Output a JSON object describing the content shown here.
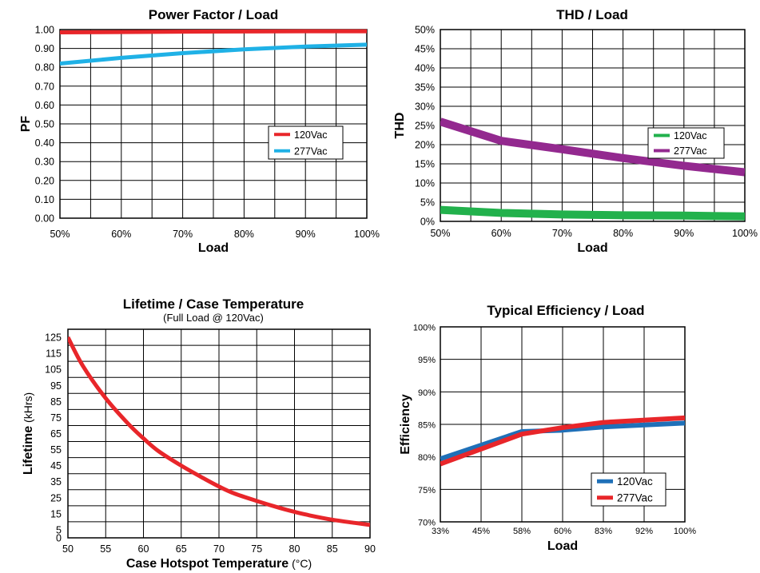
{
  "colors": {
    "red": "#e8262a",
    "cyan": "#1fb1e6",
    "green": "#22b14c",
    "purple": "#93298f",
    "blue": "#1f70b8",
    "grid": "#000000"
  },
  "chart_data": [
    {
      "type": "line",
      "title": "Power Factor / Load",
      "xlabel": "Load",
      "ylabel": "PF",
      "x_ticks": [
        "50%",
        "60%",
        "70%",
        "80%",
        "90%",
        "100%"
      ],
      "y_ticks": [
        "0.00",
        "0.10",
        "0.20",
        "0.30",
        "0.40",
        "0.50",
        "0.60",
        "0.70",
        "0.80",
        "0.90",
        "1.00"
      ],
      "xlim": [
        50,
        100
      ],
      "ylim": [
        0,
        1
      ],
      "grid": true,
      "legend_position": "right",
      "series": [
        {
          "name": "120Vac",
          "color": "#e8262a",
          "x": [
            50,
            60,
            70,
            80,
            90,
            100
          ],
          "y": [
            0.985,
            0.987,
            0.989,
            0.99,
            0.991,
            0.991
          ]
        },
        {
          "name": "277Vac",
          "color": "#1fb1e6",
          "x": [
            50,
            60,
            70,
            80,
            90,
            100
          ],
          "y": [
            0.82,
            0.85,
            0.875,
            0.895,
            0.91,
            0.92
          ]
        }
      ]
    },
    {
      "type": "line",
      "title": "THD / Load",
      "xlabel": "Load",
      "ylabel": "THD",
      "x_ticks": [
        "50%",
        "60%",
        "70%",
        "80%",
        "90%",
        "100%"
      ],
      "y_ticks": [
        "0%",
        "5%",
        "10%",
        "15%",
        "20%",
        "25%",
        "30%",
        "35%",
        "40%",
        "45%",
        "50%"
      ],
      "xlim": [
        50,
        100
      ],
      "ylim": [
        0,
        50
      ],
      "grid": true,
      "legend_position": "right",
      "series": [
        {
          "name": "120Vac",
          "color": "#22b14c",
          "x": [
            50,
            60,
            70,
            80,
            90,
            100
          ],
          "y": [
            3.0,
            2.2,
            1.8,
            1.6,
            1.5,
            1.3
          ]
        },
        {
          "name": "277Vac",
          "color": "#93298f",
          "x": [
            50,
            60,
            70,
            80,
            90,
            100
          ],
          "y": [
            26,
            21,
            18.8,
            16.5,
            14.5,
            12.8
          ]
        }
      ]
    },
    {
      "type": "line",
      "title": "Lifetime / Case Temperature",
      "subtitle": "(Full Load @ 120Vac)",
      "xlabel": "Case Hotspot Temperature",
      "xlabel_unit": "(°C)",
      "ylabel": "Lifetime",
      "ylabel_unit": "(kHrs)",
      "x_ticks": [
        "50",
        "55",
        "60",
        "65",
        "70",
        "75",
        "80",
        "85",
        "90"
      ],
      "y_ticks": [
        "0",
        "5",
        "15",
        "25",
        "35",
        "45",
        "55",
        "65",
        "75",
        "85",
        "95",
        "105",
        "115",
        "125"
      ],
      "xlim": [
        50,
        90
      ],
      "ylim": [
        0,
        125
      ],
      "grid": true,
      "series": [
        {
          "name": "",
          "color": "#e8262a",
          "x": [
            50,
            52,
            55,
            58,
            60,
            62,
            65,
            68,
            70,
            72,
            75,
            78,
            80,
            82,
            85,
            88,
            90
          ],
          "y": [
            125,
            107,
            87,
            71,
            62,
            54,
            45,
            37,
            32,
            27.7,
            23,
            18.7,
            16.2,
            14,
            11.3,
            9.3,
            8
          ]
        }
      ]
    },
    {
      "type": "line",
      "title": "Typical Efficiency / Load",
      "xlabel": "Load",
      "ylabel": "Efficiency",
      "x_ticks": [
        "33%",
        "45%",
        "58%",
        "60%",
        "83%",
        "92%",
        "100%"
      ],
      "y_ticks": [
        "70%",
        "75%",
        "80%",
        "85%",
        "90%",
        "95%",
        "100%"
      ],
      "ylim": [
        70,
        100
      ],
      "grid": true,
      "legend_position": "bottom-right",
      "series": [
        {
          "name": "120Vac",
          "color": "#1f70b8",
          "x": [
            "33%",
            "58%",
            "60%",
            "83%",
            "100%"
          ],
          "y": [
            79.7,
            83.9,
            84.1,
            84.6,
            85.2
          ]
        },
        {
          "name": "277Vac",
          "color": "#e8262a",
          "x": [
            "33%",
            "58%",
            "60%",
            "83%",
            "100%"
          ],
          "y": [
            78.9,
            83.5,
            84.5,
            85.3,
            86.0
          ]
        }
      ]
    }
  ]
}
